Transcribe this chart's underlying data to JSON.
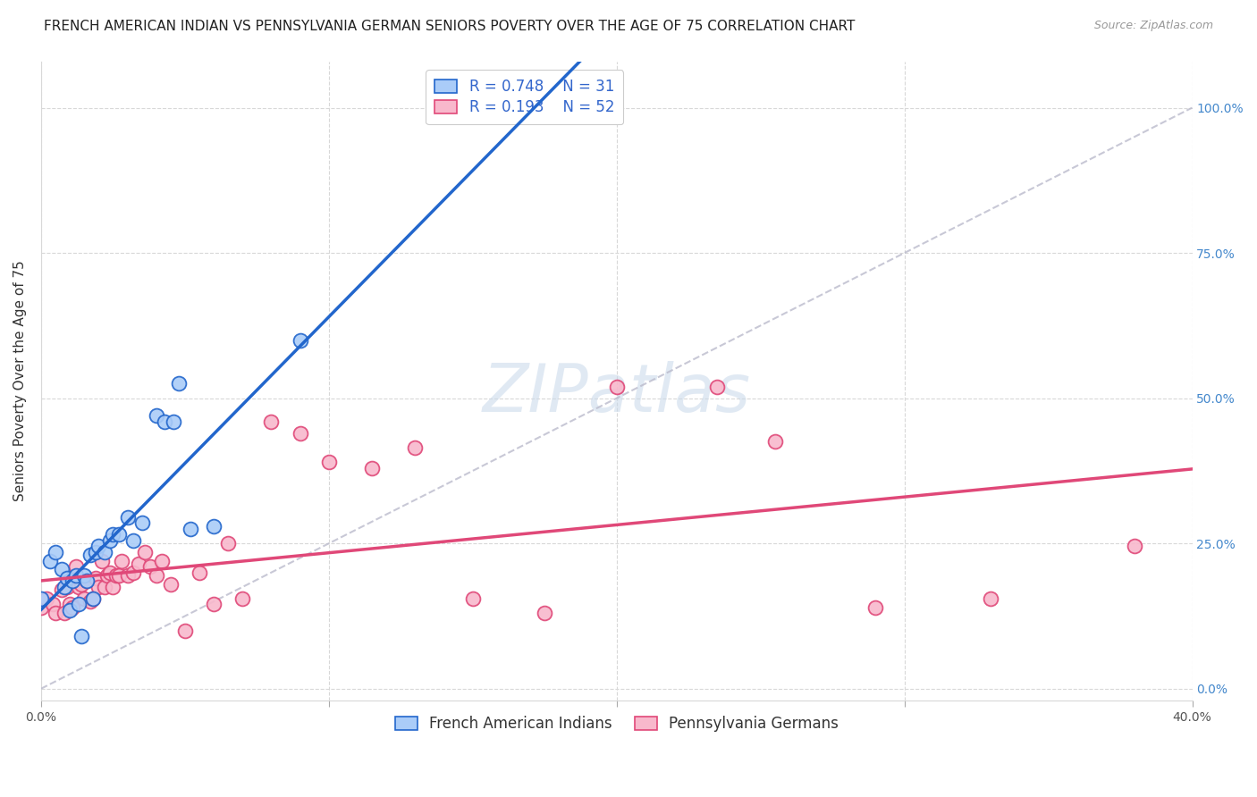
{
  "title": "FRENCH AMERICAN INDIAN VS PENNSYLVANIA GERMAN SENIORS POVERTY OVER THE AGE OF 75 CORRELATION CHART",
  "source": "Source: ZipAtlas.com",
  "ylabel": "Seniors Poverty Over the Age of 75",
  "ytick_labels": [
    "100.0%",
    "75.0%",
    "50.0%",
    "25.0%",
    "0.0%"
  ],
  "ytick_values": [
    1.0,
    0.75,
    0.5,
    0.25,
    0.0
  ],
  "xtick_positions": [
    0.0,
    0.1,
    0.2,
    0.3,
    0.4
  ],
  "xtick_labels": [
    "0.0%",
    "",
    "",
    "",
    "40.0%"
  ],
  "xlim": [
    0.0,
    0.4
  ],
  "ylim": [
    -0.02,
    1.08
  ],
  "blue_R": 0.748,
  "blue_N": 31,
  "pink_R": 0.193,
  "pink_N": 52,
  "blue_face_color": "#aaccf8",
  "blue_edge_color": "#2266cc",
  "pink_face_color": "#f8b8cc",
  "pink_edge_color": "#e04878",
  "diag_line_color": "#bbbbcc",
  "blue_line_color": "#2266cc",
  "pink_line_color": "#e04878",
  "legend_label_blue": "French American Indians",
  "legend_label_pink": "Pennsylvania Germans",
  "blue_points_x": [
    0.0,
    0.003,
    0.005,
    0.007,
    0.008,
    0.009,
    0.01,
    0.011,
    0.012,
    0.013,
    0.014,
    0.015,
    0.016,
    0.017,
    0.018,
    0.019,
    0.02,
    0.022,
    0.024,
    0.025,
    0.027,
    0.03,
    0.032,
    0.035,
    0.04,
    0.043,
    0.046,
    0.048,
    0.052,
    0.06,
    0.09
  ],
  "blue_points_y": [
    0.155,
    0.22,
    0.235,
    0.205,
    0.175,
    0.19,
    0.135,
    0.185,
    0.195,
    0.145,
    0.09,
    0.195,
    0.185,
    0.23,
    0.155,
    0.235,
    0.245,
    0.235,
    0.255,
    0.265,
    0.265,
    0.295,
    0.255,
    0.285,
    0.47,
    0.46,
    0.46,
    0.525,
    0.275,
    0.28,
    0.6
  ],
  "pink_points_x": [
    0.0,
    0.002,
    0.004,
    0.005,
    0.007,
    0.008,
    0.009,
    0.01,
    0.011,
    0.012,
    0.013,
    0.014,
    0.015,
    0.016,
    0.017,
    0.018,
    0.019,
    0.02,
    0.021,
    0.022,
    0.023,
    0.024,
    0.025,
    0.026,
    0.027,
    0.028,
    0.03,
    0.032,
    0.034,
    0.036,
    0.038,
    0.04,
    0.042,
    0.045,
    0.05,
    0.055,
    0.06,
    0.065,
    0.07,
    0.08,
    0.09,
    0.1,
    0.115,
    0.13,
    0.15,
    0.175,
    0.2,
    0.235,
    0.255,
    0.29,
    0.33,
    0.38
  ],
  "pink_points_y": [
    0.14,
    0.155,
    0.145,
    0.13,
    0.17,
    0.13,
    0.175,
    0.145,
    0.14,
    0.21,
    0.175,
    0.18,
    0.155,
    0.185,
    0.15,
    0.155,
    0.19,
    0.175,
    0.22,
    0.175,
    0.195,
    0.2,
    0.175,
    0.195,
    0.195,
    0.22,
    0.195,
    0.2,
    0.215,
    0.235,
    0.21,
    0.195,
    0.22,
    0.18,
    0.1,
    0.2,
    0.145,
    0.25,
    0.155,
    0.46,
    0.44,
    0.39,
    0.38,
    0.415,
    0.155,
    0.13,
    0.52,
    0.52,
    0.425,
    0.14,
    0.155,
    0.245
  ],
  "title_fontsize": 11,
  "source_fontsize": 9,
  "axis_label_fontsize": 11,
  "tick_fontsize": 10,
  "legend_fontsize": 12,
  "watermark_text": "ZIPatlas",
  "watermark_color": "#c8d8ea",
  "watermark_fontsize": 54,
  "grid_color": "#d8d8d8",
  "right_tick_color": "#4488cc"
}
